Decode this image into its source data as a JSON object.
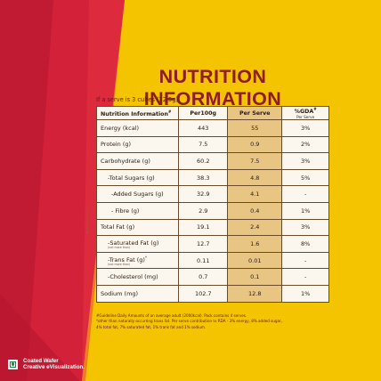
{
  "title": "NUTRITION INFORMATION",
  "serve_note": "If a serve is 3 cubes (12.5g)",
  "headers": {
    "name": "Nutrition Information",
    "name_sup": "#",
    "per100": "Per100g",
    "serve": "Per Serve",
    "gda": "%GDA",
    "gda_sup": "#",
    "gda_sub": "Per Serve"
  },
  "rows": [
    {
      "name": "Energy (kcal)",
      "per100": "443",
      "serve": "55",
      "gda": "3%"
    },
    {
      "name": "Protein (g)",
      "per100": "7.5",
      "serve": "0.9",
      "gda": "2%"
    },
    {
      "name": "Carbohydrate (g)",
      "per100": "60.2",
      "serve": "7.5",
      "gda": "3%"
    },
    {
      "name": "-Total Sugars (g)",
      "per100": "38.3",
      "serve": "4.8",
      "gda": "5%"
    },
    {
      "name": "-Added Sugars (g)",
      "per100": "32.9",
      "serve": "4.1",
      "gda": "-"
    },
    {
      "name": "- Fibre (g)",
      "per100": "2.9",
      "serve": "0.4",
      "gda": "1%"
    },
    {
      "name": "Total Fat (g)",
      "per100": "19.1",
      "serve": "2.4",
      "gda": "3%"
    },
    {
      "name": "-Saturated Fat (g)",
      "note": "(not more than)",
      "per100": "12.7",
      "serve": "1.6",
      "gda": "8%"
    },
    {
      "name": "-Trans Fat (g)",
      "sup": "*",
      "note": "(not more than)",
      "per100": "0.11",
      "serve": "0.01",
      "gda": "-"
    },
    {
      "name": "-Cholesterol (mg)",
      "per100": "0.7",
      "serve": "0.1",
      "gda": "-"
    },
    {
      "name": "Sodium (mg)",
      "per100": "102.7",
      "serve": "12.8",
      "gda": "1%"
    }
  ],
  "footnotes": [
    "#Guideline Daily Amounts of an average adult (2000kcal). Pack contains 4 serves.",
    "*other than naturally occurring trans fat. Per serve contribution to RDA - 3% energy, 8% added sugar,",
    "4% total fat,  7% saturated fat, 1% trans fat and 1% sodium."
  ],
  "footer": {
    "line1": "Coated Wafer",
    "line2": "Creative eVisualization."
  },
  "colors": {
    "background_yellow": "#f5c400",
    "red_band": "#d4213a",
    "title_maroon": "#8e1c2a",
    "serve_column": "#e9c584"
  }
}
